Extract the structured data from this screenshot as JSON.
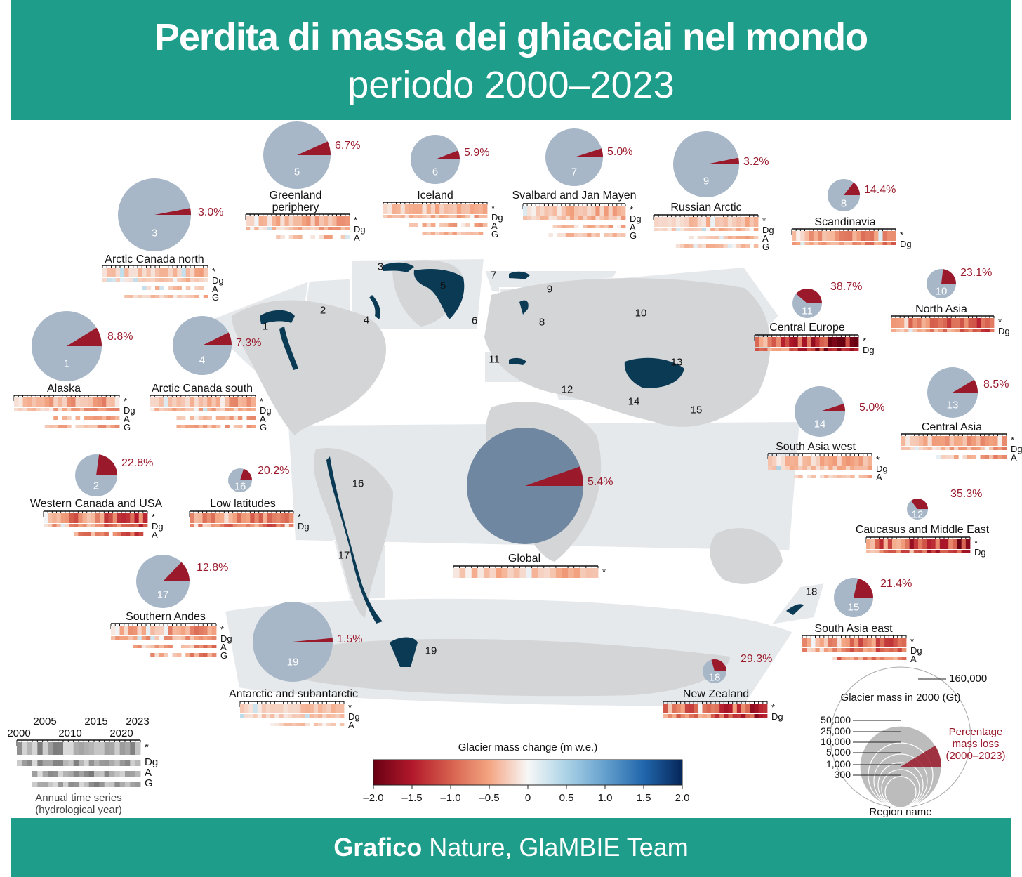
{
  "header": {
    "title": "Perdita di massa dei ghiacciai nel mondo",
    "subtitle": "periodo 2000–2023"
  },
  "footer": {
    "bold": "Grafico",
    "rest": " Nature, GlaMBIE Team"
  },
  "colors": {
    "header_bg": "#1e9d8b",
    "pie_remaining": "#a7b7c8",
    "pie_loss": "#9a1a2c",
    "glacier": "#0b3a55",
    "land": "#dcdcdc"
  },
  "chart_data": {
    "type": "pie",
    "title": "",
    "regions": [
      {
        "id": 1,
        "name": "Alaska",
        "loss_pct": 8.8,
        "pct_label": "8.8%",
        "series": [
          "*",
          "Dg",
          "A",
          "G"
        ]
      },
      {
        "id": 2,
        "name": "Western Canada and USA",
        "loss_pct": 22.8,
        "pct_label": "22.8%",
        "series": [
          "*",
          "Dg",
          "A"
        ]
      },
      {
        "id": 3,
        "name": "Arctic Canada north",
        "loss_pct": 3.0,
        "pct_label": "3.0%",
        "series": [
          "*",
          "Dg",
          "A",
          "G"
        ]
      },
      {
        "id": 4,
        "name": "Arctic Canada south",
        "loss_pct": 7.3,
        "pct_label": "7.3%",
        "series": [
          "*",
          "Dg",
          "A",
          "G"
        ]
      },
      {
        "id": 5,
        "name": "Greenland periphery",
        "loss_pct": 6.7,
        "pct_label": "6.7%",
        "series": [
          "*",
          "Dg",
          "A"
        ]
      },
      {
        "id": 6,
        "name": "Iceland",
        "loss_pct": 5.9,
        "pct_label": "5.9%",
        "series": [
          "*",
          "Dg",
          "A",
          "G"
        ]
      },
      {
        "id": 7,
        "name": "Svalbard and Jan Mayen",
        "loss_pct": 5.0,
        "pct_label": "5.0%",
        "series": [
          "*",
          "Dg",
          "A",
          "G"
        ]
      },
      {
        "id": 8,
        "name": "Scandinavia",
        "loss_pct": 14.4,
        "pct_label": "14.4%",
        "series": [
          "*",
          "Dg"
        ]
      },
      {
        "id": 9,
        "name": "Russian Arctic",
        "loss_pct": 3.2,
        "pct_label": "3.2%",
        "series": [
          "*",
          "Dg",
          "A",
          "G"
        ]
      },
      {
        "id": 10,
        "name": "North Asia",
        "loss_pct": 23.1,
        "pct_label": "23.1%",
        "series": [
          "*",
          "Dg"
        ]
      },
      {
        "id": 11,
        "name": "Central Europe",
        "loss_pct": 38.7,
        "pct_label": "38.7%",
        "series": [
          "*",
          "Dg"
        ]
      },
      {
        "id": 12,
        "name": "Caucasus and Middle East",
        "loss_pct": 35.3,
        "pct_label": "35.3%",
        "series": [
          "*",
          "Dg"
        ]
      },
      {
        "id": 13,
        "name": "Central Asia",
        "loss_pct": 8.5,
        "pct_label": "8.5%",
        "series": [
          "*",
          "Dg",
          "A"
        ]
      },
      {
        "id": 14,
        "name": "South Asia west",
        "loss_pct": 5.0,
        "pct_label": "5.0%",
        "series": [
          "*",
          "Dg",
          "A"
        ]
      },
      {
        "id": 15,
        "name": "South Asia east",
        "loss_pct": 21.4,
        "pct_label": "21.4%",
        "series": [
          "*",
          "Dg",
          "A"
        ]
      },
      {
        "id": 16,
        "name": "Low latitudes",
        "loss_pct": 20.2,
        "pct_label": "20.2%",
        "series": [
          "*",
          "Dg"
        ]
      },
      {
        "id": 17,
        "name": "Southern Andes",
        "loss_pct": 12.8,
        "pct_label": "12.8%",
        "series": [
          "*",
          "Dg",
          "A",
          "G"
        ]
      },
      {
        "id": 18,
        "name": "New Zealand",
        "loss_pct": 29.3,
        "pct_label": "29.3%",
        "series": [
          "*",
          "Dg"
        ]
      },
      {
        "id": 19,
        "name": "Antarctic and subantarctic",
        "loss_pct": 1.5,
        "pct_label": "1.5%",
        "series": [
          "*",
          "Dg",
          "A"
        ]
      },
      {
        "id": 0,
        "name": "Global",
        "loss_pct": 5.4,
        "pct_label": "5.4%",
        "series": [
          "*"
        ]
      }
    ],
    "colorbar": {
      "title": "Glacier mass change (m w.e.)",
      "range": [
        -2.0,
        2.0
      ],
      "ticks": [
        "–2.0",
        "–1.5",
        "–1.0",
        "–0.5",
        "0",
        "0.5",
        "1.0",
        "1.5",
        "2.0"
      ]
    },
    "size_legend": {
      "title": "Glacier mass in 2000 (Gt)",
      "values": [
        "160,000",
        "50,000",
        "25,000",
        "10,000",
        "5,000",
        "1,000",
        "300"
      ],
      "loss_label": "Percentage mass loss (2000–2023)",
      "loss_lines": [
        "Percentage",
        "mass loss",
        "(2000–2023)"
      ],
      "name_label": "Region name"
    },
    "time_legend": {
      "years_top": [
        "2005",
        "2015",
        "2023"
      ],
      "years_bottom": [
        "2000",
        "2010",
        "2020"
      ],
      "series": [
        "*",
        "Dg",
        "A",
        "G"
      ],
      "caption_lines": [
        "Annual time series",
        "(hydrological year)"
      ]
    }
  }
}
